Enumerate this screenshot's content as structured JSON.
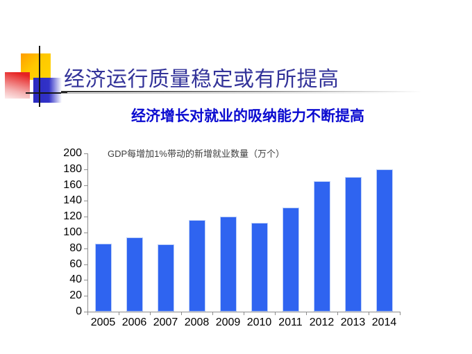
{
  "slide": {
    "title": "经济运行质量稳定或有所提高",
    "subtitle": "经济增长对就业的吸纳能力不断提高"
  },
  "chart_data": {
    "type": "bar",
    "title": "GDP每增加1%带动的新增就业数量（万个）",
    "categories": [
      "2005",
      "2006",
      "2007",
      "2008",
      "2009",
      "2010",
      "2011",
      "2012",
      "2013",
      "2014"
    ],
    "values": [
      86,
      94,
      85,
      116,
      120,
      112,
      132,
      165,
      170,
      180
    ],
    "xlabel": "",
    "ylabel": "",
    "ylim": [
      0,
      200
    ],
    "yticks": [
      0,
      20,
      40,
      60,
      80,
      100,
      120,
      140,
      160,
      180,
      200
    ],
    "grid": false,
    "legend": "none",
    "bar_color": "#2f64f0",
    "bar_border_color": "#bdd0f8"
  },
  "colors": {
    "title": "#333399",
    "subtitle": "#0a0ad0",
    "chart_label": "#3d3d3d",
    "axis": "#8c8c8c",
    "logo_yellow": "#ffc800",
    "logo_red": "#e62222",
    "logo_blue": "#3232c8"
  }
}
